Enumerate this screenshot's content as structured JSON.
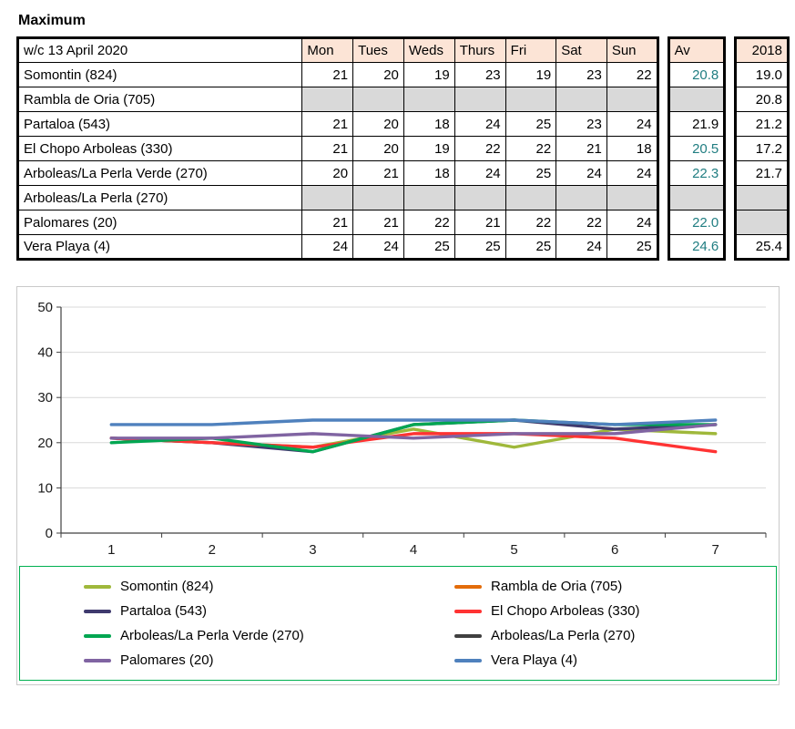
{
  "title": "Maximum",
  "table": {
    "week_label": "w/c  13 April 2020",
    "day_headers": [
      "Mon",
      "Tues",
      "Weds",
      "Thurs",
      "Fri",
      "Sat",
      "Sun"
    ],
    "av_header": "Av",
    "year_header": "2018",
    "rows": [
      {
        "name": "Somontin (824)",
        "days": [
          "21",
          "20",
          "19",
          "23",
          "19",
          "23",
          "22"
        ],
        "av": "20.8",
        "av_color": "#217e82",
        "y2018": "19.0"
      },
      {
        "name": "Rambla de Oria (705)",
        "days": [
          "",
          "",
          "",
          "",
          "",
          "",
          ""
        ],
        "av": "",
        "av_color": "",
        "y2018": "20.8"
      },
      {
        "name": "Partaloa (543)",
        "days": [
          "21",
          "20",
          "18",
          "24",
          "25",
          "23",
          "24"
        ],
        "av": "21.9",
        "av_color": "#000000",
        "y2018": "21.2"
      },
      {
        "name": "El Chopo  Arboleas (330)",
        "days": [
          "21",
          "20",
          "19",
          "22",
          "22",
          "21",
          "18"
        ],
        "av": "20.5",
        "av_color": "#217e82",
        "y2018": "17.2"
      },
      {
        "name": "Arboleas/La Perla Verde (270)",
        "days": [
          "20",
          "21",
          "18",
          "24",
          "25",
          "24",
          "24"
        ],
        "av": "22.3",
        "av_color": "#217e82",
        "y2018": "21.7"
      },
      {
        "name": "Arboleas/La Perla (270)",
        "days": [
          "",
          "",
          "",
          "",
          "",
          "",
          ""
        ],
        "av": "",
        "av_color": "",
        "y2018": ""
      },
      {
        "name": "Palomares (20)",
        "days": [
          "21",
          "21",
          "22",
          "21",
          "22",
          "22",
          "24"
        ],
        "av": "22.0",
        "av_color": "#217e82",
        "y2018": ""
      },
      {
        "name": "Vera Playa (4)",
        "days": [
          "24",
          "24",
          "25",
          "25",
          "25",
          "24",
          "25"
        ],
        "av": "24.6",
        "av_color": "#217e82",
        "y2018": "25.4"
      }
    ]
  },
  "chart_data": {
    "type": "line",
    "x": [
      1,
      2,
      3,
      4,
      5,
      6,
      7
    ],
    "ylim": [
      0,
      50
    ],
    "yticks": [
      0,
      10,
      20,
      30,
      40,
      50
    ],
    "grid": true,
    "legend_position": "bottom",
    "series": [
      {
        "name": "Somontin (824)",
        "color": "#9fb83b",
        "values": [
          21,
          20,
          19,
          23,
          19,
          23,
          22
        ]
      },
      {
        "name": "Rambla de Oria (705)",
        "color": "#e36c0a",
        "values": []
      },
      {
        "name": "Partaloa (543)",
        "color": "#3f3a6e",
        "values": [
          21,
          20,
          18,
          24,
          25,
          23,
          24
        ]
      },
      {
        "name": "El Chopo  Arboleas (330)",
        "color": "#ff3333",
        "values": [
          21,
          20,
          19,
          22,
          22,
          21,
          18
        ]
      },
      {
        "name": "Arboleas/La Perla Verde (270)",
        "color": "#00a651",
        "values": [
          20,
          21,
          18,
          24,
          25,
          24,
          24
        ]
      },
      {
        "name": "Arboleas/La Perla (270)",
        "color": "#404040",
        "values": []
      },
      {
        "name": "Palomares (20)",
        "color": "#8064a2",
        "values": [
          21,
          21,
          22,
          21,
          22,
          22,
          24
        ]
      },
      {
        "name": "Vera Playa (4)",
        "color": "#4f81bd",
        "values": [
          24,
          24,
          25,
          25,
          25,
          24,
          25
        ]
      }
    ]
  },
  "colors": {
    "header_fill": "#fce4d6",
    "empty_fill": "#d9d9d9",
    "table_border": "#000000",
    "av_text_teal": "#217e82",
    "grid": "#d9d9d9",
    "axis": "#404040",
    "legend_border": "#00b050",
    "chart_border": "#c9c9c9"
  }
}
